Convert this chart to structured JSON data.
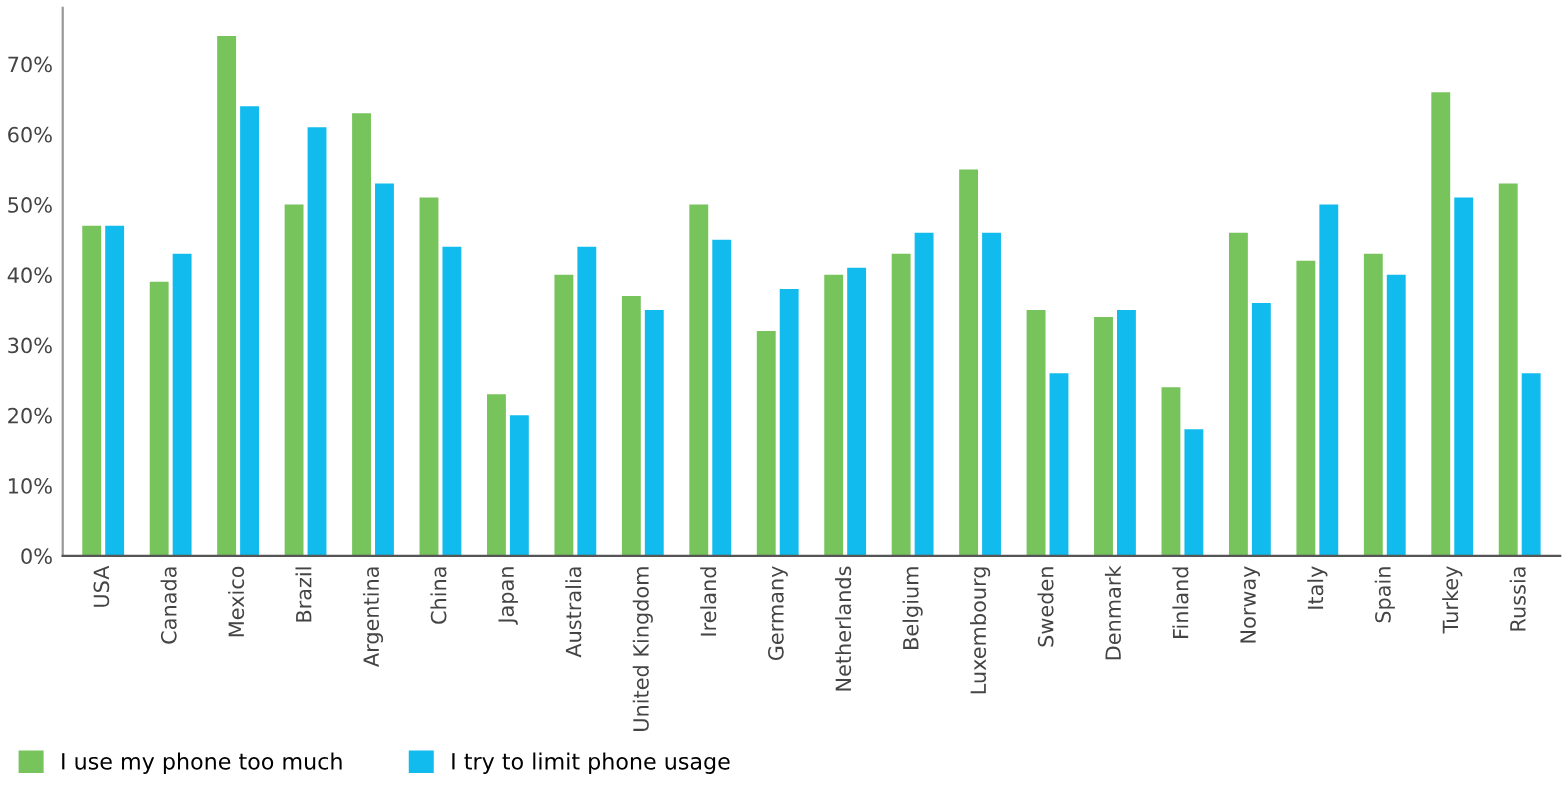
{
  "chart_data": {
    "type": "bar",
    "categories": [
      "USA",
      "Canada",
      "Mexico",
      "Brazil",
      "Argentina",
      "China",
      "Japan",
      "Australia",
      "United Kingdom",
      "Ireland",
      "Germany",
      "Netherlands",
      "Belgium",
      "Luxembourg",
      "Sweden",
      "Denmark",
      "Finland",
      "Norway",
      "Italy",
      "Spain",
      "Turkey",
      "Russia"
    ],
    "series": [
      {
        "name": "I use my phone too much",
        "color": "#77c35c",
        "values": [
          47,
          39,
          74,
          50,
          63,
          51,
          23,
          40,
          37,
          50,
          32,
          40,
          43,
          55,
          35,
          34,
          24,
          46,
          42,
          43,
          66,
          53
        ]
      },
      {
        "name": "I try to limit phone usage",
        "color": "#12bbee",
        "values": [
          47,
          43,
          64,
          61,
          53,
          44,
          20,
          44,
          35,
          45,
          38,
          41,
          46,
          46,
          26,
          35,
          18,
          36,
          50,
          40,
          51,
          26
        ]
      }
    ],
    "ylim": [
      0,
      78
    ],
    "yticks": [
      {
        "value": 0,
        "label": "0%"
      },
      {
        "value": 10,
        "label": "10%"
      },
      {
        "value": 20,
        "label": "20%"
      },
      {
        "value": 30,
        "label": "30%"
      },
      {
        "value": 40,
        "label": "40%"
      },
      {
        "value": 50,
        "label": "50%"
      },
      {
        "value": 60,
        "label": "60%"
      },
      {
        "value": 70,
        "label": "70%"
      }
    ],
    "grid": false,
    "legend": "bottom left"
  }
}
